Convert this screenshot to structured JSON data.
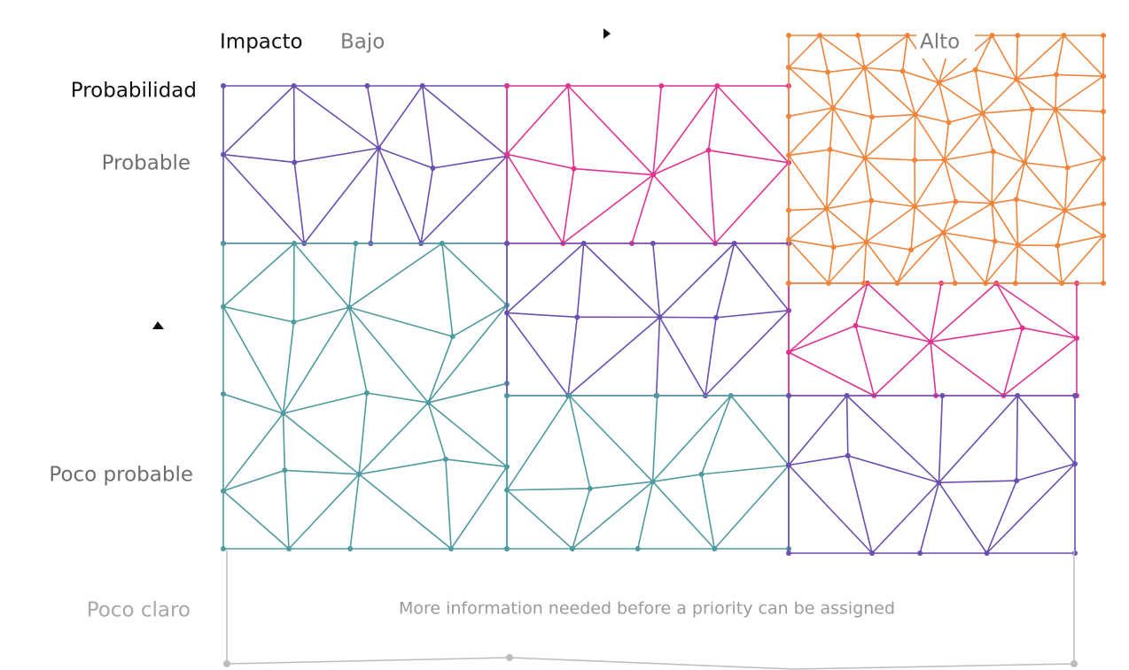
{
  "header": {
    "impact": "Impacto",
    "impact_low": "Bajo",
    "impact_high": "Alto"
  },
  "probability": {
    "title": "Probabilidad",
    "rows": [
      "Probable",
      "Poco probable",
      "Poco claro"
    ]
  },
  "note": "More information needed before a priority can be assigned"
}
